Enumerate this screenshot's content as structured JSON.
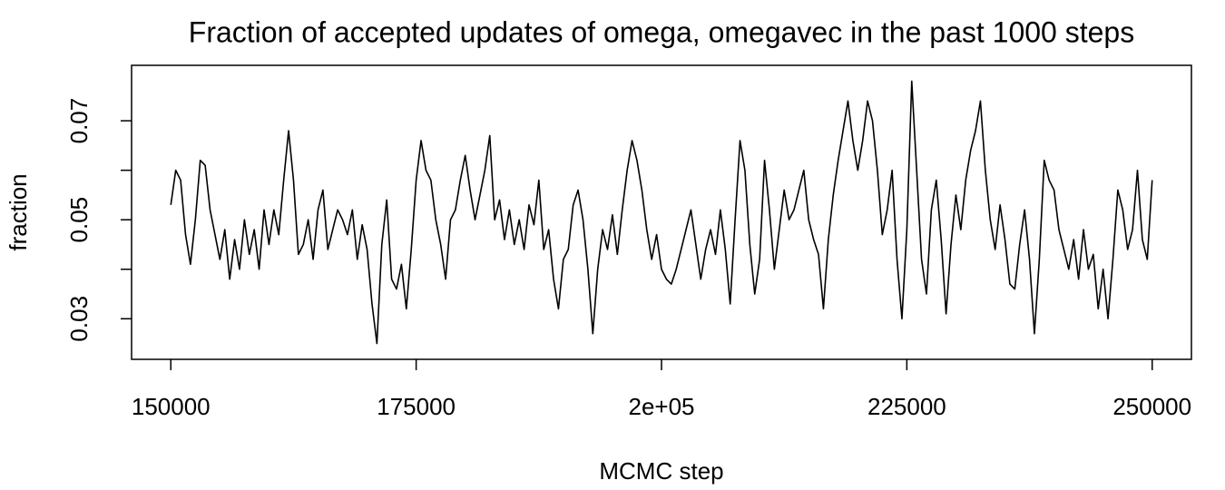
{
  "chart_data": {
    "type": "line",
    "title": "Fraction of accepted updates of omega, omegavec in the past 1000 steps",
    "xlabel": "MCMC step",
    "ylabel": "fraction",
    "color": "#000000",
    "xlim": [
      146000,
      254000
    ],
    "ylim": [
      0.0218,
      0.0812
    ],
    "xticks": [
      150000,
      175000,
      {
        "value": 200000,
        "label": "2e+05"
      },
      225000,
      250000
    ],
    "yticks": [
      0.03,
      {
        "value": 0.04,
        "label": null
      },
      0.05,
      {
        "value": 0.06,
        "label": null
      },
      0.07
    ],
    "x": [
      150000,
      150500,
      151000,
      151500,
      152000,
      152500,
      153000,
      153500,
      154000,
      154500,
      155000,
      155500,
      156000,
      156500,
      157000,
      157500,
      158000,
      158500,
      159000,
      159500,
      160000,
      160500,
      161000,
      161500,
      162000,
      162500,
      163000,
      163500,
      164000,
      164500,
      165000,
      165500,
      166000,
      166500,
      167000,
      167500,
      168000,
      168500,
      169000,
      169500,
      170000,
      170500,
      171000,
      171500,
      172000,
      172500,
      173000,
      173500,
      174000,
      174500,
      175000,
      175500,
      176000,
      176500,
      177000,
      177500,
      178000,
      178500,
      179000,
      179500,
      180000,
      180500,
      181000,
      181500,
      182000,
      182500,
      183000,
      183500,
      184000,
      184500,
      185000,
      185500,
      186000,
      186500,
      187000,
      187500,
      188000,
      188500,
      189000,
      189500,
      190000,
      190500,
      191000,
      191500,
      192000,
      192500,
      193000,
      193500,
      194000,
      194500,
      195000,
      195500,
      196000,
      196500,
      197000,
      197500,
      198000,
      198500,
      199000,
      199500,
      200000,
      200500,
      201000,
      201500,
      202000,
      202500,
      203000,
      203500,
      204000,
      204500,
      205000,
      205500,
      206000,
      206500,
      207000,
      207500,
      208000,
      208500,
      209000,
      209500,
      210000,
      210500,
      211000,
      211500,
      212000,
      212500,
      213000,
      213500,
      214000,
      214500,
      215000,
      215500,
      216000,
      216500,
      217000,
      217500,
      218000,
      218500,
      219000,
      219500,
      220000,
      220500,
      221000,
      221500,
      222000,
      222500,
      223000,
      223500,
      224000,
      224500,
      225000,
      225500,
      226000,
      226500,
      227000,
      227500,
      228000,
      228500,
      229000,
      229500,
      230000,
      230500,
      231000,
      231500,
      232000,
      232500,
      233000,
      233500,
      234000,
      234500,
      235000,
      235500,
      236000,
      236500,
      237000,
      237500,
      238000,
      238500,
      239000,
      239500,
      240000,
      240500,
      241000,
      241500,
      242000,
      242500,
      243000,
      243500,
      244000,
      244500,
      245000,
      245500,
      246000,
      246500,
      247000,
      247500,
      248000,
      248500,
      249000,
      249500,
      250000
    ],
    "values": [
      0.053,
      0.06,
      0.058,
      0.047,
      0.041,
      0.05,
      0.062,
      0.061,
      0.052,
      0.047,
      0.042,
      0.048,
      0.038,
      0.046,
      0.04,
      0.05,
      0.043,
      0.048,
      0.04,
      0.052,
      0.045,
      0.052,
      0.047,
      0.058,
      0.068,
      0.058,
      0.043,
      0.045,
      0.05,
      0.042,
      0.052,
      0.056,
      0.044,
      0.048,
      0.052,
      0.05,
      0.047,
      0.052,
      0.042,
      0.049,
      0.044,
      0.033,
      0.025,
      0.045,
      0.054,
      0.038,
      0.036,
      0.041,
      0.032,
      0.044,
      0.058,
      0.066,
      0.06,
      0.058,
      0.05,
      0.045,
      0.038,
      0.05,
      0.052,
      0.058,
      0.063,
      0.056,
      0.05,
      0.055,
      0.06,
      0.067,
      0.05,
      0.054,
      0.046,
      0.052,
      0.045,
      0.05,
      0.044,
      0.053,
      0.049,
      0.058,
      0.044,
      0.048,
      0.038,
      0.032,
      0.042,
      0.044,
      0.053,
      0.056,
      0.05,
      0.04,
      0.027,
      0.04,
      0.048,
      0.044,
      0.051,
      0.043,
      0.052,
      0.06,
      0.066,
      0.062,
      0.056,
      0.048,
      0.042,
      0.047,
      0.04,
      0.038,
      0.037,
      0.04,
      0.044,
      0.048,
      0.052,
      0.045,
      0.038,
      0.044,
      0.048,
      0.043,
      0.052,
      0.044,
      0.033,
      0.05,
      0.066,
      0.06,
      0.045,
      0.035,
      0.042,
      0.062,
      0.052,
      0.04,
      0.048,
      0.056,
      0.05,
      0.052,
      0.056,
      0.06,
      0.05,
      0.046,
      0.043,
      0.032,
      0.046,
      0.055,
      0.062,
      0.068,
      0.074,
      0.066,
      0.06,
      0.066,
      0.074,
      0.07,
      0.06,
      0.047,
      0.052,
      0.06,
      0.042,
      0.03,
      0.048,
      0.078,
      0.06,
      0.042,
      0.035,
      0.052,
      0.058,
      0.046,
      0.031,
      0.045,
      0.055,
      0.048,
      0.058,
      0.064,
      0.068,
      0.074,
      0.06,
      0.05,
      0.044,
      0.053,
      0.046,
      0.037,
      0.036,
      0.045,
      0.052,
      0.042,
      0.027,
      0.042,
      0.062,
      0.058,
      0.056,
      0.048,
      0.044,
      0.04,
      0.046,
      0.038,
      0.048,
      0.04,
      0.043,
      0.032,
      0.04,
      0.03,
      0.042,
      0.056,
      0.052,
      0.044,
      0.048,
      0.06,
      0.046,
      0.042,
      0.058
    ]
  }
}
